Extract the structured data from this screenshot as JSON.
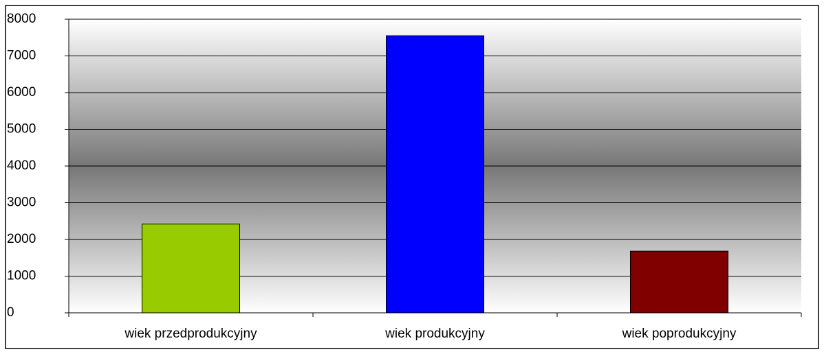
{
  "chart_data": {
    "type": "bar",
    "categories": [
      "wiek przedprodukcyjny",
      "wiek produkcyjny",
      "wiek poprodukcyjny"
    ],
    "values": [
      2420,
      7550,
      1680
    ],
    "colors": [
      "#99cc00",
      "#0000ff",
      "#800000"
    ],
    "ylim": [
      0,
      8000
    ],
    "yticks": [
      0,
      1000,
      2000,
      3000,
      4000,
      5000,
      6000,
      7000,
      8000
    ],
    "grid": true
  }
}
